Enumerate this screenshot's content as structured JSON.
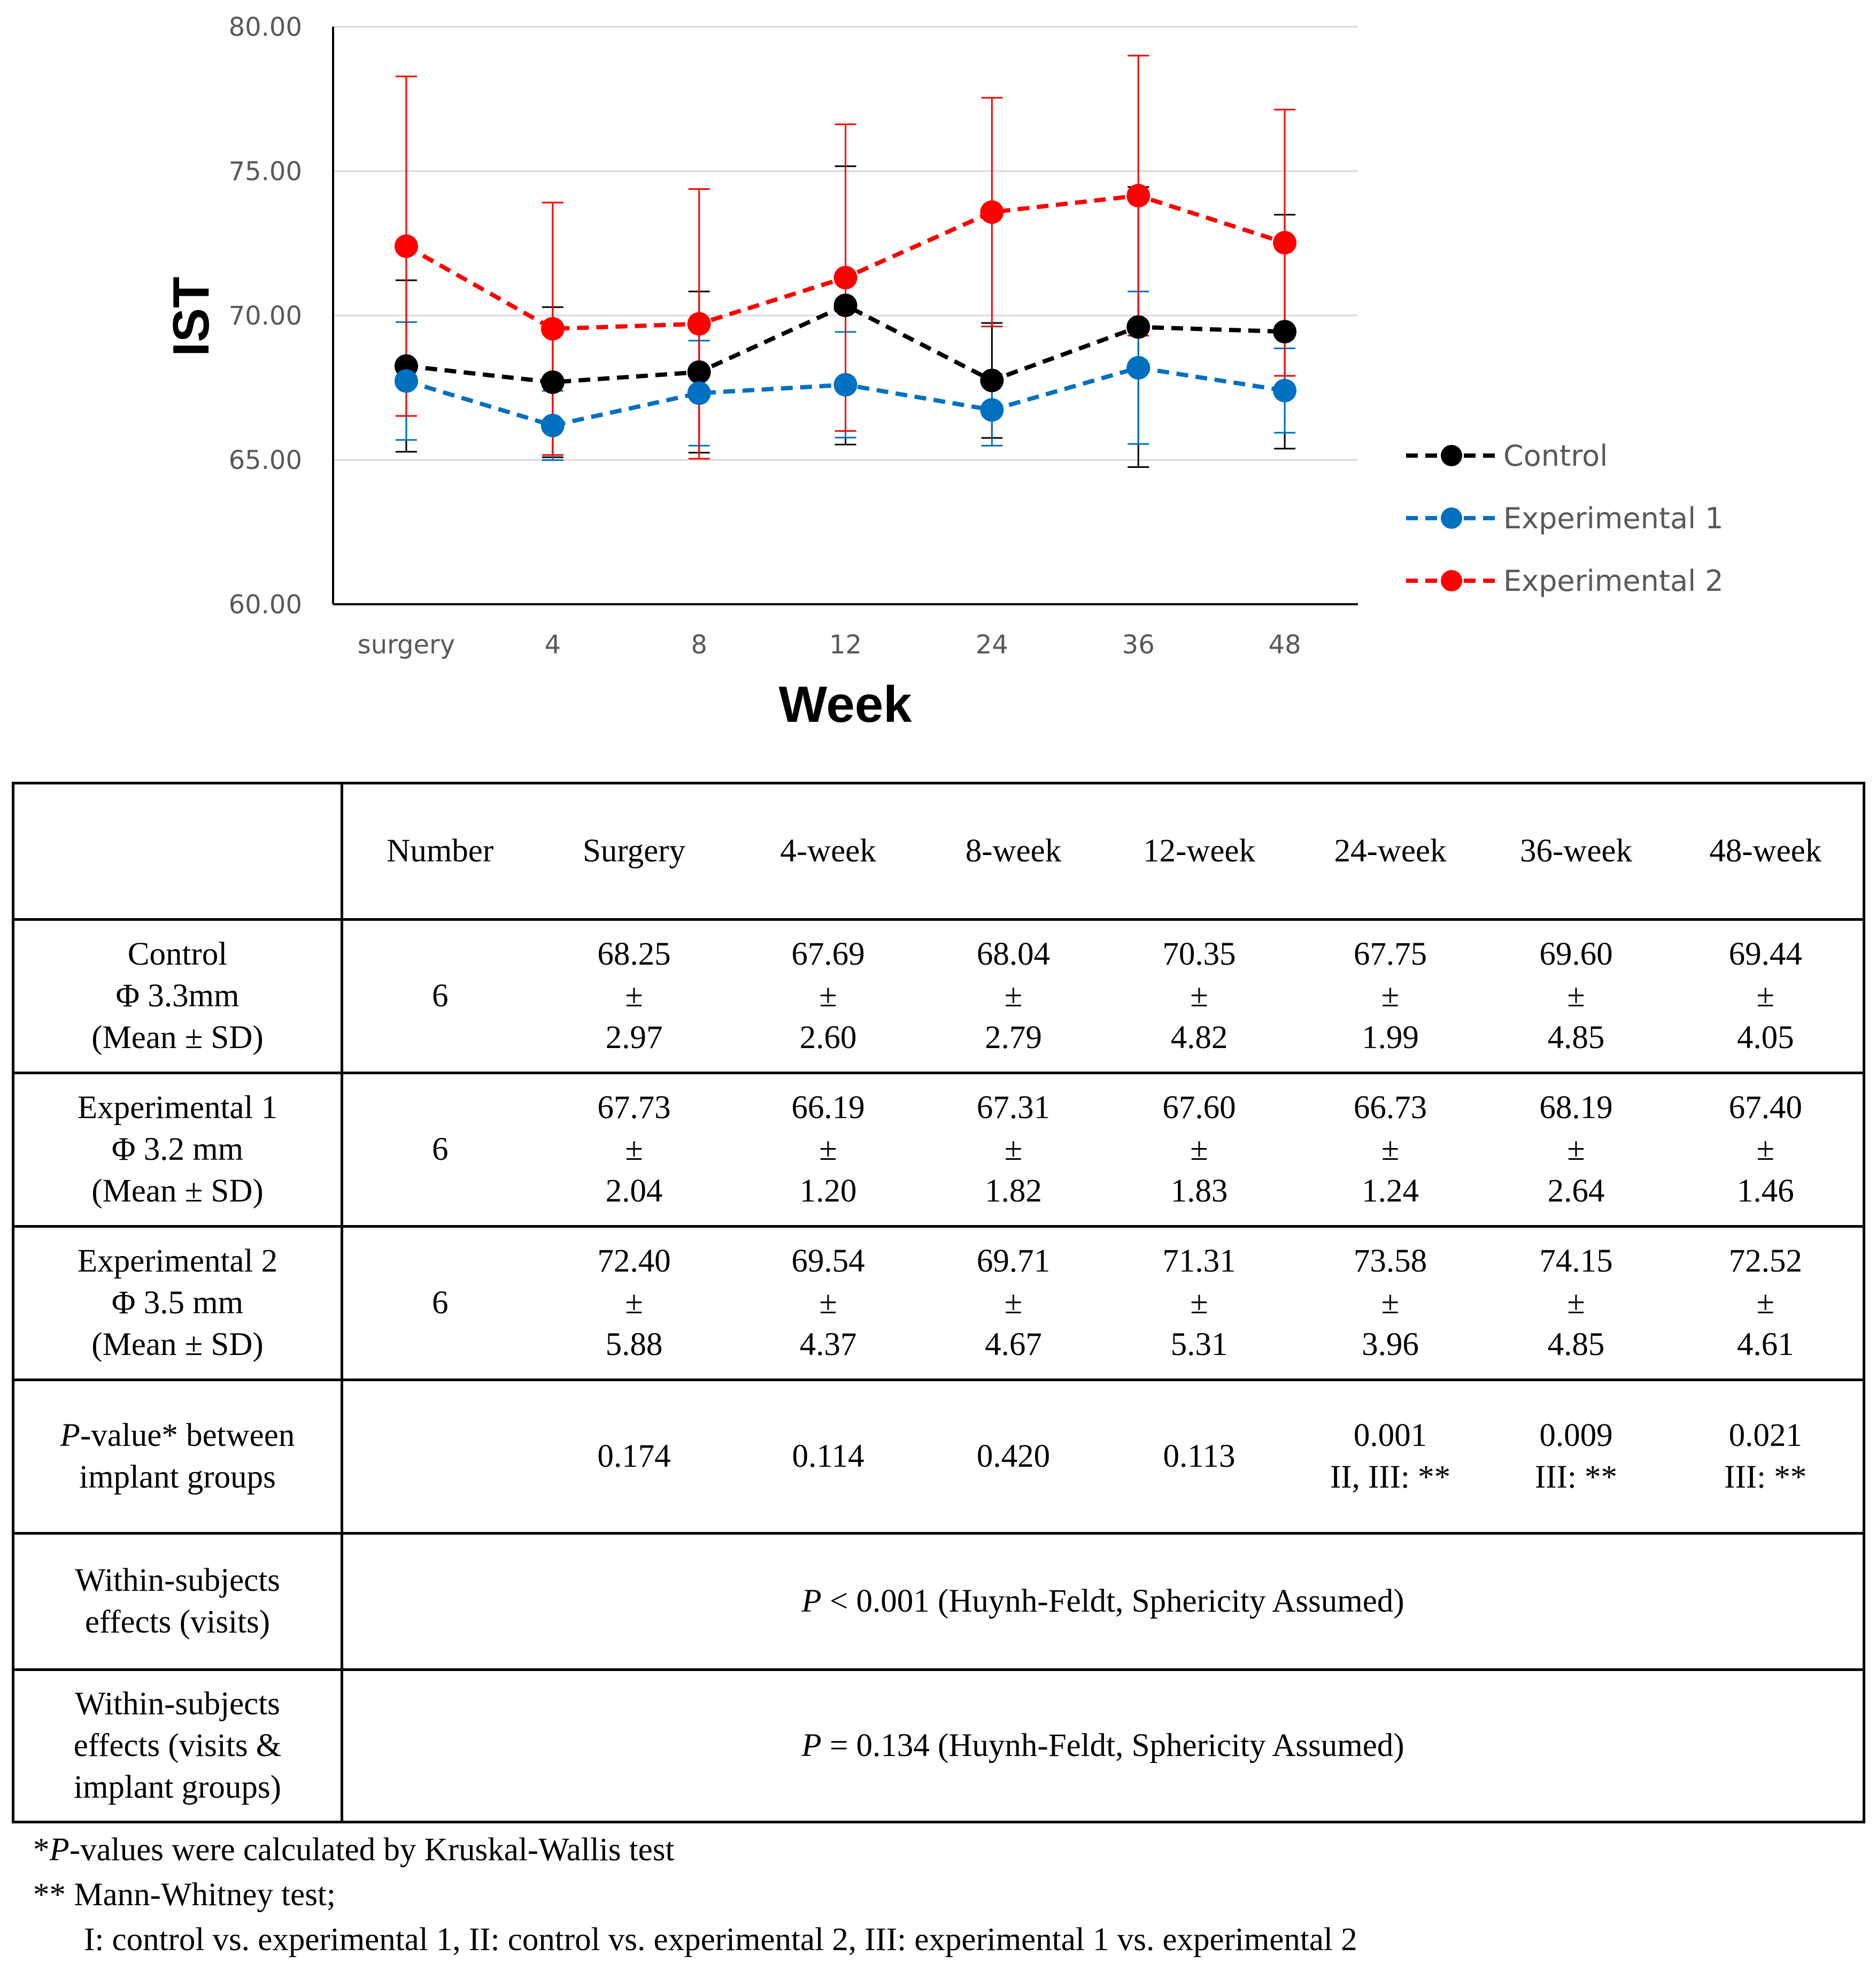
{
  "chart_data": {
    "type": "line",
    "ylabel": "IST",
    "xlabel": "Week",
    "categories": [
      "surgery",
      "4",
      "8",
      "12",
      "24",
      "36",
      "48"
    ],
    "ylim": [
      60,
      80
    ],
    "yticks": [
      "60.00",
      "65.00",
      "70.00",
      "75.00",
      "80.00"
    ],
    "ytick_values": [
      60,
      65,
      70,
      75,
      80
    ],
    "grid": true,
    "legend_position": "right",
    "series": [
      {
        "name": "Control",
        "color": "#000000",
        "values": [
          68.25,
          67.69,
          68.04,
          70.35,
          67.75,
          69.6,
          69.44
        ],
        "sd": [
          2.97,
          2.6,
          2.79,
          4.82,
          1.99,
          4.85,
          4.05
        ]
      },
      {
        "name": "Experimental 1",
        "color": "#0070c0",
        "values": [
          67.73,
          66.19,
          67.31,
          67.6,
          66.73,
          68.19,
          67.4
        ],
        "sd": [
          2.04,
          1.2,
          1.82,
          1.83,
          1.24,
          2.64,
          1.46
        ]
      },
      {
        "name": "Experimental 2",
        "color": "#ff0000",
        "values": [
          72.4,
          69.54,
          69.71,
          71.31,
          73.58,
          74.15,
          72.52
        ],
        "sd": [
          5.88,
          4.37,
          4.67,
          5.31,
          3.96,
          4.85,
          4.61
        ]
      }
    ]
  },
  "table": {
    "header": [
      "",
      "Number",
      "Surgery",
      "4-week",
      "8-week",
      "12-week",
      "24-week",
      "36-week",
      "48-week"
    ],
    "pm": "±",
    "groups": [
      {
        "label_lines": [
          "Control",
          "Φ 3.3mm",
          "(Mean ± SD)"
        ],
        "number": "6",
        "means": [
          "68.25",
          "67.69",
          "68.04",
          "70.35",
          "67.75",
          "69.60",
          "69.44"
        ],
        "sds": [
          "2.97",
          "2.60",
          "2.79",
          "4.82",
          "1.99",
          "4.85",
          "4.05"
        ]
      },
      {
        "label_lines": [
          "Experimental 1",
          "Φ 3.2 mm",
          "(Mean ± SD)"
        ],
        "number": "6",
        "means": [
          "67.73",
          "66.19",
          "67.31",
          "67.60",
          "66.73",
          "68.19",
          "67.40"
        ],
        "sds": [
          "2.04",
          "1.20",
          "1.82",
          "1.83",
          "1.24",
          "2.64",
          "1.46"
        ]
      },
      {
        "label_lines": [
          "Experimental 2",
          "Φ 3.5 mm",
          "(Mean ± SD)"
        ],
        "number": "6",
        "means": [
          "72.40",
          "69.54",
          "69.71",
          "71.31",
          "73.58",
          "74.15",
          "72.52"
        ],
        "sds": [
          "5.88",
          "4.37",
          "4.67",
          "5.31",
          "3.96",
          "4.85",
          "4.61"
        ]
      }
    ],
    "pvalue_row": {
      "label_italic": "P",
      "label_rest_line1": "-value* between",
      "label_line2": "implant groups",
      "values": [
        "0.174",
        "0.114",
        "0.420",
        "0.113",
        "0.001",
        "0.009",
        "0.021"
      ],
      "notes": [
        "",
        "",
        "",
        "",
        "II, III:  **",
        "III:  **",
        "III:  **"
      ]
    },
    "within_visits": {
      "label_lines": [
        "Within-subjects",
        "effects (visits)"
      ],
      "p_italic": "P",
      "text": " < 0.001 (Huynh-Feldt, Sphericity  Assumed)"
    },
    "within_visits_groups": {
      "label_lines": [
        "Within-subjects",
        "effects (visits &",
        "implant groups)"
      ],
      "p_italic": "P",
      "text": " = 0.134 (Huynh-Feldt, Sphericity  Assumed)"
    }
  },
  "footnotes": {
    "line1_prefix": "*",
    "line1_italic": "P",
    "line1_rest": "-values were calculated by Kruskal-Wallis test",
    "line2": "** Mann-Whitney test;",
    "line3": "I: control vs. experimental 1, II: control vs. experimental 2, III: experimental 1 vs. experimental 2"
  }
}
